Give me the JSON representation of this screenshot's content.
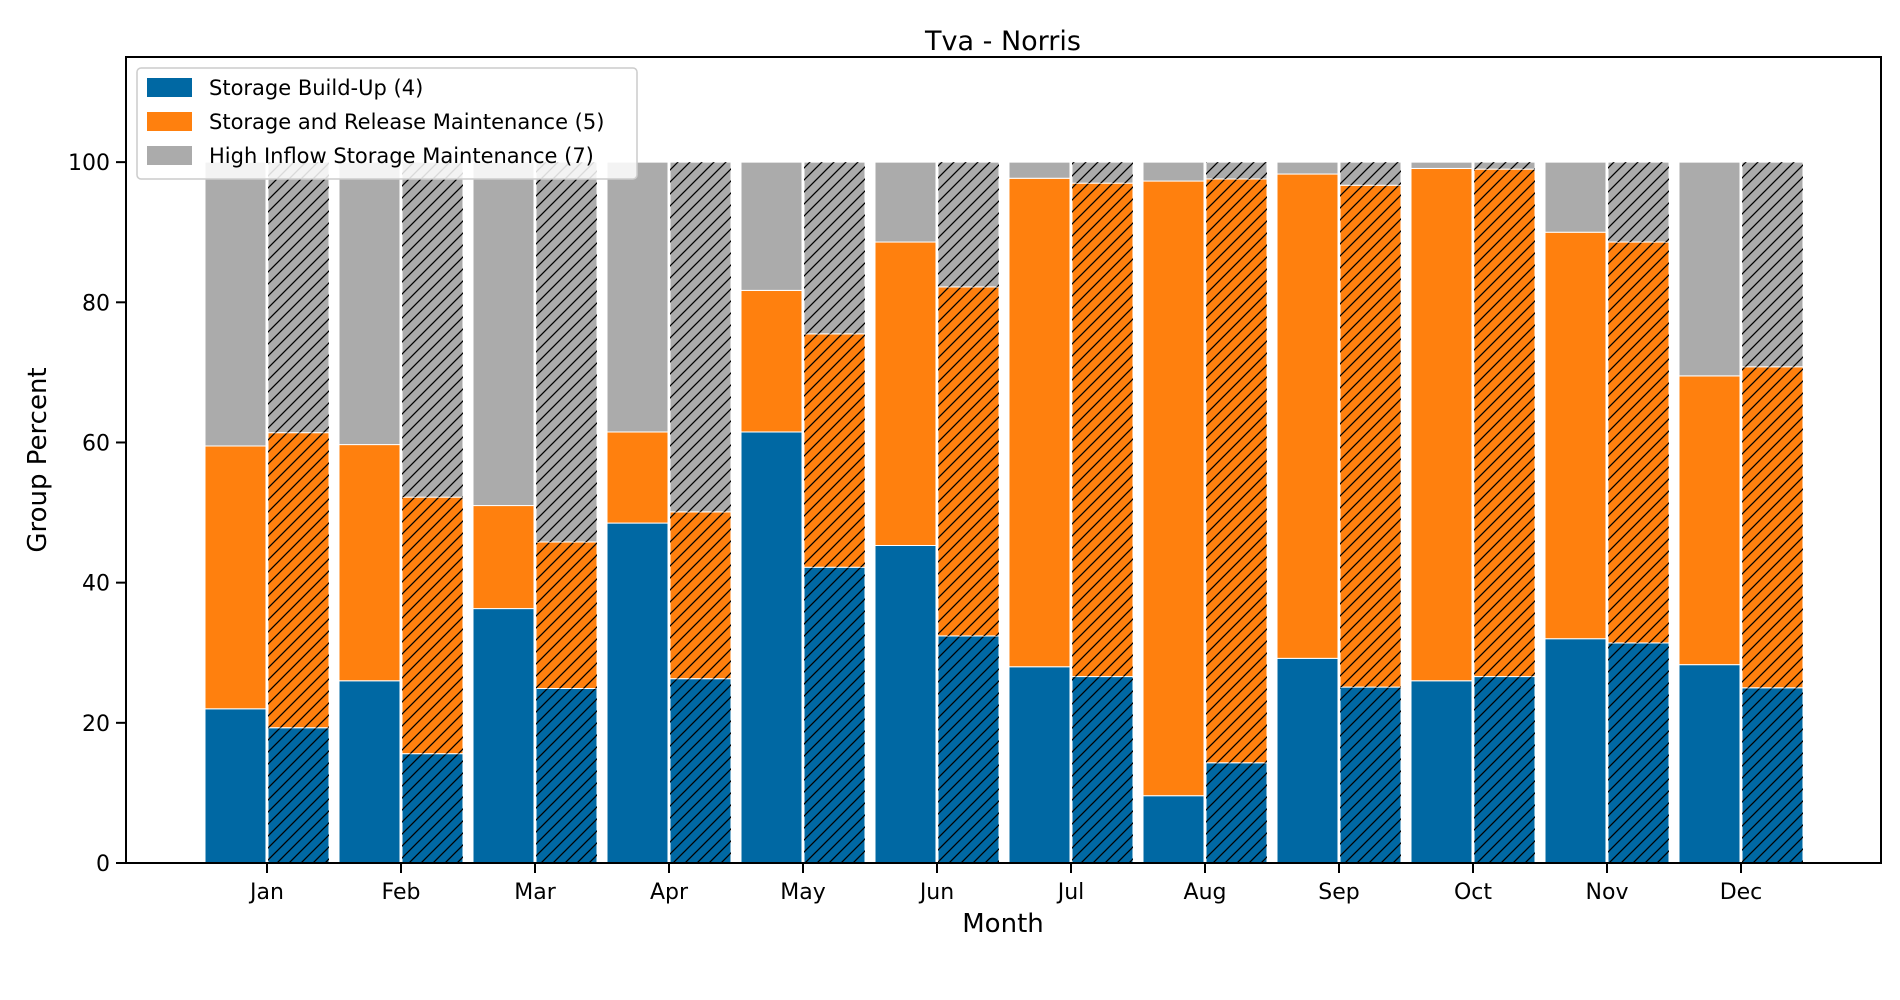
{
  "chart_data": {
    "type": "bar",
    "stacked": true,
    "title": "Tva - Norris",
    "xlabel": "Month",
    "ylabel": "Group Percent",
    "ylim": [
      0,
      115
    ],
    "yticks": [
      0,
      20,
      40,
      60,
      80,
      100
    ],
    "categories": [
      "Jan",
      "Feb",
      "Mar",
      "Apr",
      "May",
      "Jun",
      "Jul",
      "Aug",
      "Sep",
      "Oct",
      "Nov",
      "Dec"
    ],
    "bars_per_category": [
      "solid",
      "hatched"
    ],
    "series": [
      {
        "name": "Storage Build-Up (4)",
        "color": "#0068a3",
        "solid": [
          22.0,
          26.0,
          36.3,
          48.5,
          61.5,
          45.3,
          28.0,
          9.6,
          29.2,
          26.0,
          32.0,
          28.3
        ],
        "hatched": [
          19.3,
          15.6,
          24.9,
          26.3,
          42.2,
          32.4,
          26.6,
          14.3,
          25.1,
          26.6,
          31.4,
          25.0
        ]
      },
      {
        "name": "Storage and Release Maintenance (5)",
        "color": "#ff800e",
        "solid": [
          37.5,
          33.7,
          14.7,
          13.0,
          20.2,
          43.3,
          69.7,
          87.7,
          69.1,
          73.1,
          58.0,
          41.2
        ],
        "hatched": [
          42.1,
          36.6,
          20.9,
          23.8,
          33.3,
          49.8,
          70.4,
          83.3,
          71.6,
          72.4,
          57.2,
          45.8
        ]
      },
      {
        "name": "High Inflow Storage Maintenance (7)",
        "color": "#ababab",
        "solid": [
          40.5,
          40.3,
          49.0,
          38.5,
          18.3,
          11.4,
          2.3,
          2.7,
          1.7,
          0.9,
          10.0,
          30.5
        ],
        "hatched": [
          38.6,
          47.8,
          54.2,
          49.9,
          24.5,
          17.8,
          3.0,
          2.4,
          3.3,
          1.0,
          11.4,
          29.2
        ]
      }
    ],
    "legend_position": "upper-left",
    "grid": false
  }
}
